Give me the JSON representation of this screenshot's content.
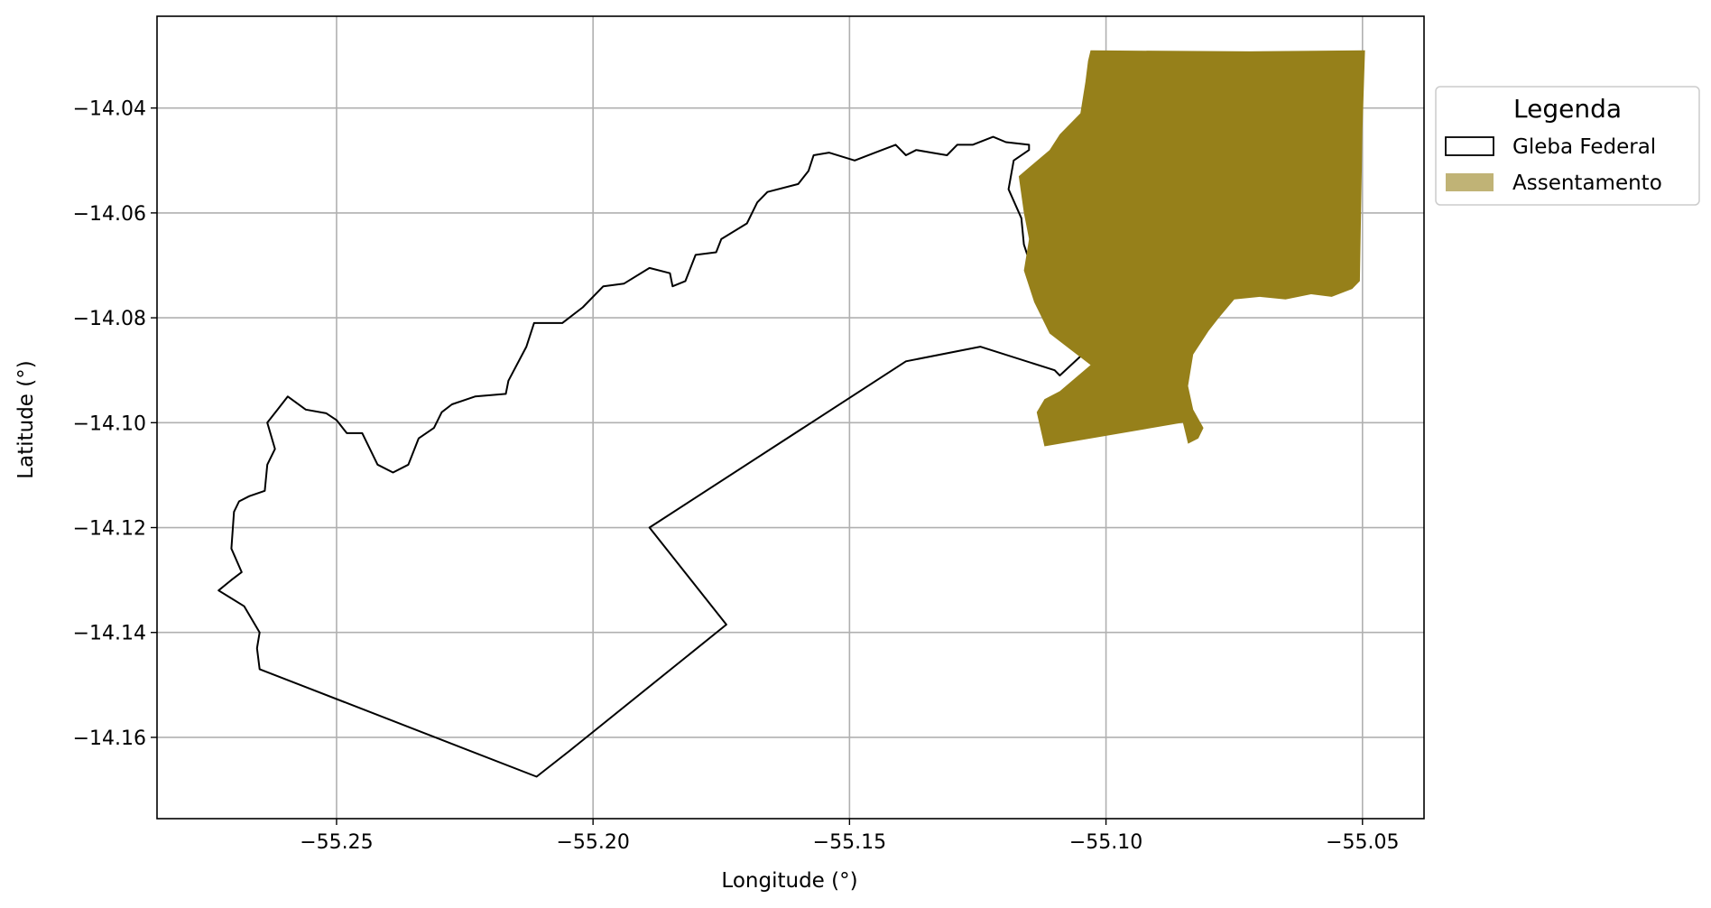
{
  "chart_data": {
    "type": "map",
    "xlabel": "Longitude (°)",
    "ylabel": "Latitude (°)",
    "xlim": [
      -55.285,
      -55.038
    ],
    "ylim": [
      -14.1755,
      -14.0225
    ],
    "x_ticks": [
      -55.25,
      -55.2,
      -55.15,
      -55.1,
      -55.05
    ],
    "x_tick_labels": [
      "−55.25",
      "−55.20",
      "−55.15",
      "−55.10",
      "−55.05"
    ],
    "y_ticks": [
      -14.04,
      -14.06,
      -14.08,
      -14.1,
      -14.12,
      -14.14,
      -14.16
    ],
    "y_tick_labels": [
      "−14.04",
      "−14.06",
      "−14.08",
      "−14.10",
      "−14.12",
      "−14.14",
      "−14.16"
    ],
    "grid": true,
    "legend": {
      "title": "Legenda",
      "placement": "outside-upper-right",
      "entries": [
        {
          "label": "Gleba Federal",
          "style": "outline",
          "color": "#000000"
        },
        {
          "label": "Assentamento",
          "style": "filled",
          "color": "#96801a"
        }
      ]
    },
    "features": [
      {
        "name": "Gleba Federal",
        "style": "outline",
        "color": "#000000",
        "coordinates": [
          [
            -55.1245,
            -14.0855
          ],
          [
            -55.139,
            -14.0883
          ],
          [
            -55.189,
            -14.12
          ],
          [
            -55.174,
            -14.1385
          ],
          [
            -55.2045,
            -14.1625
          ],
          [
            -55.211,
            -14.1675
          ],
          [
            -55.265,
            -14.147
          ],
          [
            -55.2655,
            -14.143
          ],
          [
            -55.265,
            -14.14
          ],
          [
            -55.268,
            -14.135
          ],
          [
            -55.273,
            -14.132
          ],
          [
            -55.2705,
            -14.13
          ],
          [
            -55.2685,
            -14.1285
          ],
          [
            -55.2705,
            -14.124
          ],
          [
            -55.27,
            -14.117
          ],
          [
            -55.269,
            -14.115
          ],
          [
            -55.267,
            -14.114
          ],
          [
            -55.264,
            -14.113
          ],
          [
            -55.2635,
            -14.108
          ],
          [
            -55.262,
            -14.105
          ],
          [
            -55.2635,
            -14.1
          ],
          [
            -55.2615,
            -14.0975
          ],
          [
            -55.2595,
            -14.095
          ],
          [
            -55.256,
            -14.0975
          ],
          [
            -55.252,
            -14.0982
          ],
          [
            -55.25,
            -14.0995
          ],
          [
            -55.248,
            -14.102
          ],
          [
            -55.245,
            -14.102
          ],
          [
            -55.242,
            -14.108
          ],
          [
            -55.239,
            -14.1095
          ],
          [
            -55.236,
            -14.108
          ],
          [
            -55.234,
            -14.103
          ],
          [
            -55.231,
            -14.101
          ],
          [
            -55.2295,
            -14.098
          ],
          [
            -55.2275,
            -14.0965
          ],
          [
            -55.223,
            -14.095
          ],
          [
            -55.217,
            -14.0945
          ],
          [
            -55.2165,
            -14.092
          ],
          [
            -55.213,
            -14.0855
          ],
          [
            -55.2115,
            -14.081
          ],
          [
            -55.206,
            -14.081
          ],
          [
            -55.202,
            -14.078
          ],
          [
            -55.198,
            -14.074
          ],
          [
            -55.194,
            -14.0735
          ],
          [
            -55.189,
            -14.0705
          ],
          [
            -55.185,
            -14.0715
          ],
          [
            -55.1845,
            -14.074
          ],
          [
            -55.182,
            -14.073
          ],
          [
            -55.18,
            -14.068
          ],
          [
            -55.176,
            -14.0675
          ],
          [
            -55.175,
            -14.065
          ],
          [
            -55.17,
            -14.062
          ],
          [
            -55.168,
            -14.058
          ],
          [
            -55.166,
            -14.056
          ],
          [
            -55.16,
            -14.0545
          ],
          [
            -55.158,
            -14.052
          ],
          [
            -55.157,
            -14.049
          ],
          [
            -55.154,
            -14.0485
          ],
          [
            -55.149,
            -14.05
          ],
          [
            -55.145,
            -14.0485
          ],
          [
            -55.141,
            -14.047
          ],
          [
            -55.139,
            -14.049
          ],
          [
            -55.137,
            -14.048
          ],
          [
            -55.134,
            -14.0485
          ],
          [
            -55.131,
            -14.049
          ],
          [
            -55.129,
            -14.047
          ],
          [
            -55.126,
            -14.047
          ],
          [
            -55.122,
            -14.0455
          ],
          [
            -55.1195,
            -14.0465
          ],
          [
            -55.115,
            -14.047
          ],
          [
            -55.115,
            -14.048
          ],
          [
            -55.118,
            -14.05
          ],
          [
            -55.119,
            -14.0555
          ],
          [
            -55.1165,
            -14.061
          ],
          [
            -55.116,
            -14.066
          ],
          [
            -55.114,
            -14.072
          ],
          [
            -55.113,
            -14.074
          ],
          [
            -55.112,
            -14.08
          ],
          [
            -55.11,
            -14.083
          ],
          [
            -55.106,
            -14.084
          ],
          [
            -55.1035,
            -14.086
          ],
          [
            -55.109,
            -14.091
          ],
          [
            -55.11,
            -14.09
          ],
          [
            -55.1245,
            -14.0855
          ]
        ]
      },
      {
        "name": "Assentamento",
        "style": "filled",
        "color": "#96801a",
        "coordinates": [
          [
            -55.103,
            -14.029
          ],
          [
            -55.072,
            -14.0292
          ],
          [
            -55.0495,
            -14.029
          ],
          [
            -55.05,
            -14.044
          ],
          [
            -55.0505,
            -14.073
          ],
          [
            -55.052,
            -14.0745
          ],
          [
            -55.056,
            -14.076
          ],
          [
            -55.06,
            -14.0755
          ],
          [
            -55.065,
            -14.0765
          ],
          [
            -55.07,
            -14.076
          ],
          [
            -55.075,
            -14.0765
          ],
          [
            -55.078,
            -14.08
          ],
          [
            -55.08,
            -14.0825
          ],
          [
            -55.083,
            -14.087
          ],
          [
            -55.084,
            -14.093
          ],
          [
            -55.083,
            -14.0975
          ],
          [
            -55.081,
            -14.101
          ],
          [
            -55.082,
            -14.103
          ],
          [
            -55.084,
            -14.104
          ],
          [
            -55.085,
            -14.1
          ],
          [
            -55.112,
            -14.1045
          ],
          [
            -55.1135,
            -14.098
          ],
          [
            -55.112,
            -14.0955
          ],
          [
            -55.109,
            -14.094
          ],
          [
            -55.103,
            -14.089
          ],
          [
            -55.107,
            -14.086
          ],
          [
            -55.111,
            -14.083
          ],
          [
            -55.114,
            -14.077
          ],
          [
            -55.116,
            -14.071
          ],
          [
            -55.115,
            -14.065
          ],
          [
            -55.116,
            -14.06
          ],
          [
            -55.117,
            -14.053
          ],
          [
            -55.111,
            -14.048
          ],
          [
            -55.109,
            -14.045
          ],
          [
            -55.105,
            -14.041
          ],
          [
            -55.104,
            -14.035
          ],
          [
            -55.1035,
            -14.031
          ],
          [
            -55.103,
            -14.029
          ]
        ]
      }
    ]
  }
}
